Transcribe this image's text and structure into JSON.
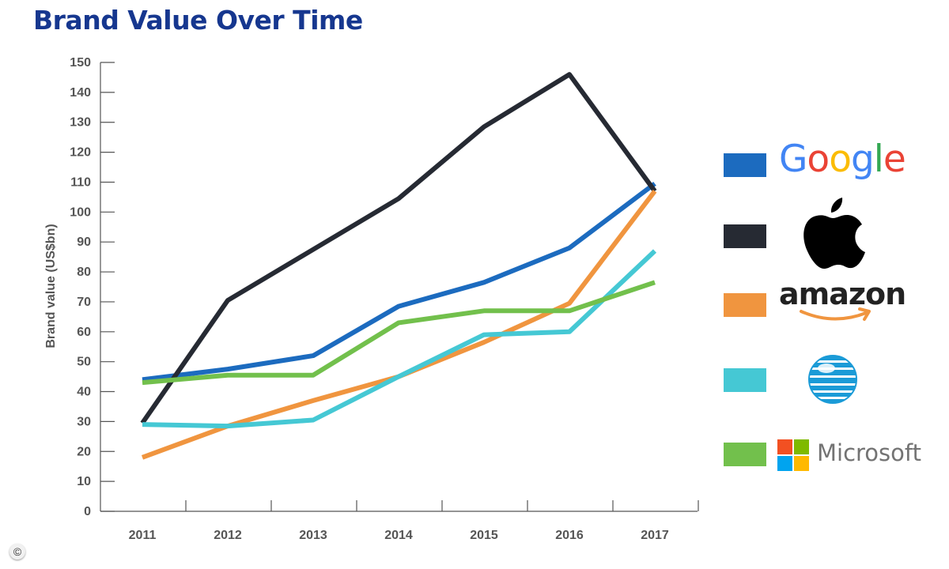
{
  "title": "Brand Value Over Time",
  "copyright": "©",
  "chart_data": {
    "type": "line",
    "ylabel": "Brand value (US$bn)",
    "xlabel": "",
    "categories": [
      "2011",
      "2012",
      "2013",
      "2014",
      "2015",
      "2016",
      "2017"
    ],
    "ylim": [
      0,
      150
    ],
    "yticks": [
      0,
      10,
      20,
      30,
      40,
      50,
      60,
      70,
      80,
      90,
      100,
      110,
      120,
      130,
      140,
      150
    ],
    "grid": false,
    "legend_position": "right",
    "series": [
      {
        "name": "Google",
        "color": "#1c6bbf",
        "values": [
          44,
          47.5,
          52,
          68.5,
          76.5,
          88,
          109.5
        ]
      },
      {
        "name": "Apple",
        "color": "#262a33",
        "values": [
          29.5,
          70.5,
          87.5,
          104.5,
          128.5,
          146,
          107
        ]
      },
      {
        "name": "amazon",
        "color": "#f0953f",
        "values": [
          18,
          28.5,
          37,
          45,
          56.5,
          69.5,
          107
        ]
      },
      {
        "name": "AT&T",
        "color": "#45c8d4",
        "values": [
          29,
          28.5,
          30.5,
          45,
          59,
          60,
          87
        ]
      },
      {
        "name": "Microsoft",
        "color": "#72c04c",
        "values": [
          43,
          45.5,
          45.5,
          63,
          67,
          67,
          76.5
        ]
      }
    ]
  }
}
